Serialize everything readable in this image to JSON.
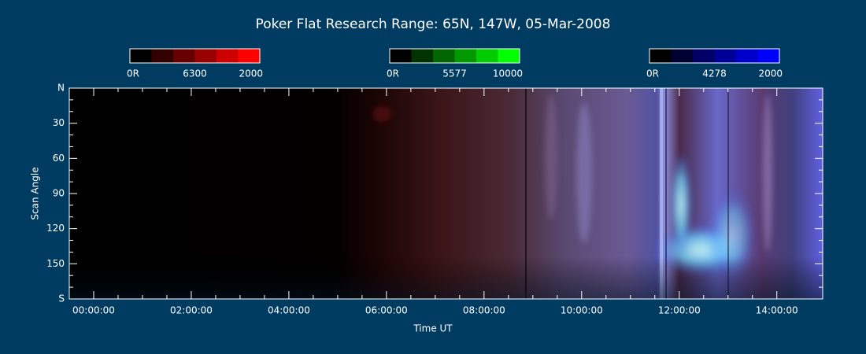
{
  "chart_data": {
    "type": "keogram",
    "title": "Poker Flat Research Range: 65N, 147W, 05-Mar-2008",
    "colorbars": [
      {
        "name": "6300",
        "min_label": "0R",
        "max_label": "2000",
        "color": "#ff0000"
      },
      {
        "name": "5577",
        "min_label": "0R",
        "max_label": "10000",
        "color": "#00ff00"
      },
      {
        "name": "4278",
        "min_label": "0R",
        "max_label": "2000",
        "color": "#0000ff"
      }
    ],
    "xlabel": "Time UT",
    "ylabel": "Scan Angle",
    "xlim": [
      -0.5,
      14.94
    ],
    "xticks": [
      {
        "value": 0,
        "label": "00:00:00"
      },
      {
        "value": 2,
        "label": "02:00:00"
      },
      {
        "value": 4,
        "label": "04:00:00"
      },
      {
        "value": 6,
        "label": "06:00:00"
      },
      {
        "value": 8,
        "label": "08:00:00"
      },
      {
        "value": 10,
        "label": "10:00:00"
      },
      {
        "value": 12,
        "label": "12:00:00"
      },
      {
        "value": 14,
        "label": "14:00:00"
      }
    ],
    "ylim": [
      180,
      0
    ],
    "yticks": [
      {
        "value": 0,
        "label": "N"
      },
      30,
      60,
      90,
      120,
      150,
      {
        "value": 180,
        "label": "S"
      }
    ]
  }
}
